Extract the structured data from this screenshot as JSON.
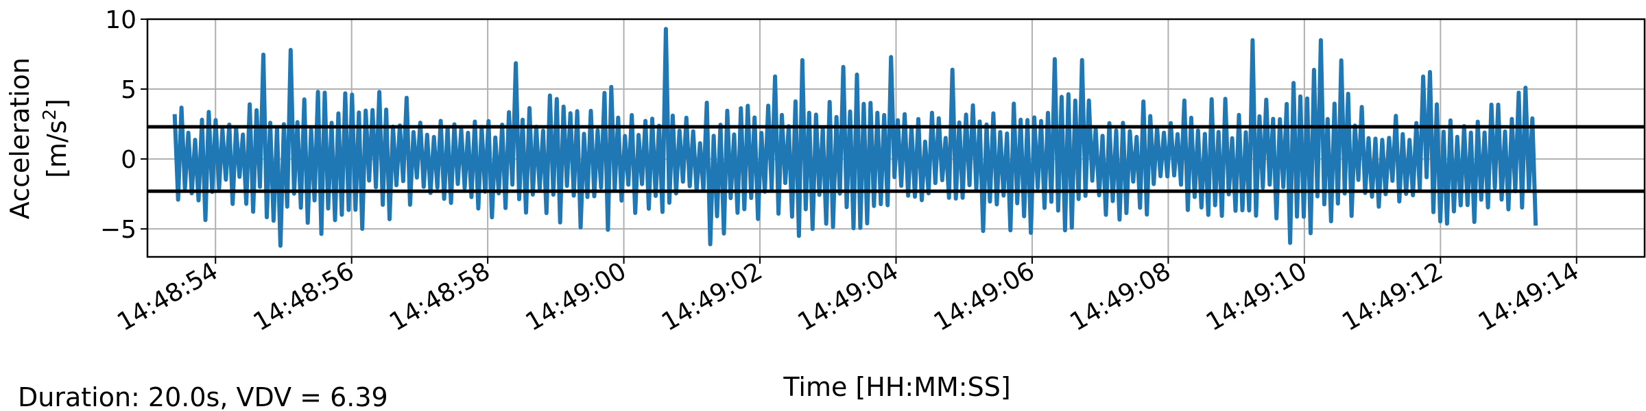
{
  "chart_data": {
    "type": "line",
    "xlabel": "Time [HH:MM:SS]",
    "ylabel_line1": "Acceleration",
    "ylabel_line2": "[m/s²]",
    "x_ticks": [
      "14:48:54",
      "14:48:56",
      "14:48:58",
      "14:49:00",
      "14:49:02",
      "14:49:04",
      "14:49:06",
      "14:49:08",
      "14:49:10",
      "14:49:12",
      "14:49:14"
    ],
    "y_ticks": [
      "10",
      "5",
      "0",
      "−5"
    ],
    "y_tick_values": [
      10,
      5,
      0,
      -5
    ],
    "xlim_seconds_after_start": [
      -1.0,
      21.0
    ],
    "ylim": [
      -7,
      10
    ],
    "grid": true,
    "series": [
      {
        "color": "#1f77b4",
        "x_range": [
          "14:48:53.4",
          "14:49:13.4"
        ],
        "sample_count": 400,
        "peaks_approx": [
          {
            "t": "14:48:55.1",
            "v": 7.8
          },
          {
            "t": "14:48:55.0",
            "v": -6.2
          },
          {
            "t": "14:49:00.6",
            "v": 9.3
          },
          {
            "t": "14:49:01.3",
            "v": -6.1
          },
          {
            "t": "14:49:09.2",
            "v": 8.5
          },
          {
            "t": "14:49:10.2",
            "v": 8.5
          },
          {
            "t": "14:49:09.8",
            "v": -6.0
          }
        ]
      }
    ],
    "hlines": [
      {
        "value": 2.3,
        "color": "#000000"
      },
      {
        "value": -2.3,
        "color": "#000000"
      }
    ]
  },
  "footer": {
    "summary": "Duration: 20.0s, VDV = 6.39"
  }
}
